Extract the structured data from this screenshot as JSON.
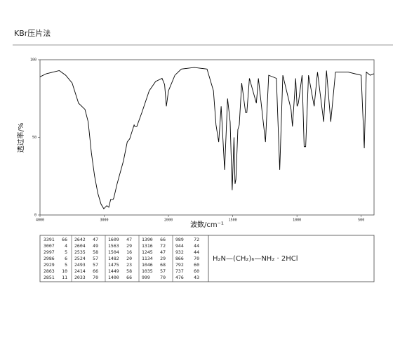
{
  "chart_data": {
    "type": "line",
    "title": "KBr压片法",
    "x_label": "波数/cm⁻¹",
    "y_label": "透过率/%",
    "xlim": [
      4000,
      400
    ],
    "x_scale_change": 2000,
    "ylim": [
      0,
      100
    ],
    "xticks": [
      4000,
      3000,
      2000,
      1500,
      1000,
      500
    ],
    "yticks": [
      0,
      50,
      100
    ],
    "color": "#000000",
    "x": [
      4000,
      3900,
      3800,
      3700,
      3600,
      3500,
      3400,
      3300,
      3250,
      3200,
      3150,
      3100,
      3050,
      3007,
      2960,
      2929,
      2900,
      2863,
      2851,
      2800,
      2700,
      2642,
      2604,
      2535,
      2524,
      2493,
      2414,
      2300,
      2200,
      2100,
      2060,
      2033,
      2000,
      1950,
      1900,
      1800,
      1700,
      1650,
      1630,
      1609,
      1590,
      1563,
      1540,
      1520,
      1504,
      1490,
      1482,
      1475,
      1460,
      1449,
      1430,
      1400,
      1390,
      1370,
      1316,
      1300,
      1245,
      1220,
      1160,
      1134,
      1110,
      1046,
      1035,
      1010,
      999,
      989,
      960,
      944,
      932,
      910,
      866,
      840,
      792,
      770,
      737,
      700,
      600,
      500,
      476,
      460,
      430,
      400
    ],
    "values": [
      89,
      91,
      92,
      93,
      90,
      85,
      72,
      68,
      60,
      40,
      25,
      14,
      7,
      4,
      6,
      5,
      10,
      10,
      11,
      20,
      35,
      47,
      49,
      58,
      57,
      57,
      66,
      80,
      86,
      88,
      84,
      70,
      80,
      90,
      94,
      95,
      94,
      80,
      58,
      47,
      70,
      29,
      75,
      60,
      16,
      50,
      20,
      23,
      55,
      58,
      85,
      66,
      66,
      88,
      72,
      88,
      47,
      90,
      88,
      29,
      90,
      68,
      57,
      88,
      70,
      72,
      90,
      44,
      44,
      90,
      70,
      92,
      60,
      93,
      60,
      92,
      92,
      90,
      43,
      92,
      90,
      91
    ],
    "peak_table": [
      [
        [
          3391,
          66
        ],
        [
          3007,
          4
        ],
        [
          2997,
          5
        ],
        [
          2986,
          6
        ],
        [
          2929,
          5
        ],
        [
          2863,
          10
        ],
        [
          2851,
          11
        ]
      ],
      [
        [
          2642,
          47
        ],
        [
          2604,
          49
        ],
        [
          2535,
          58
        ],
        [
          2524,
          57
        ],
        [
          2493,
          57
        ],
        [
          2414,
          66
        ],
        [
          2033,
          70
        ]
      ],
      [
        [
          1609,
          47
        ],
        [
          1563,
          29
        ],
        [
          1504,
          16
        ],
        [
          1482,
          20
        ],
        [
          1475,
          23
        ],
        [
          1449,
          58
        ],
        [
          1400,
          66
        ]
      ],
      [
        [
          1390,
          66
        ],
        [
          1316,
          72
        ],
        [
          1245,
          47
        ],
        [
          1134,
          29
        ],
        [
          1046,
          68
        ],
        [
          1035,
          57
        ],
        [
          999,
          70
        ]
      ],
      [
        [
          989,
          72
        ],
        [
          944,
          44
        ],
        [
          932,
          44
        ],
        [
          866,
          70
        ],
        [
          792,
          60
        ],
        [
          737,
          60
        ],
        [
          476,
          43
        ]
      ]
    ],
    "formula": "H₂N—(CH₂)₆—NH₂  ·  2HCl"
  }
}
